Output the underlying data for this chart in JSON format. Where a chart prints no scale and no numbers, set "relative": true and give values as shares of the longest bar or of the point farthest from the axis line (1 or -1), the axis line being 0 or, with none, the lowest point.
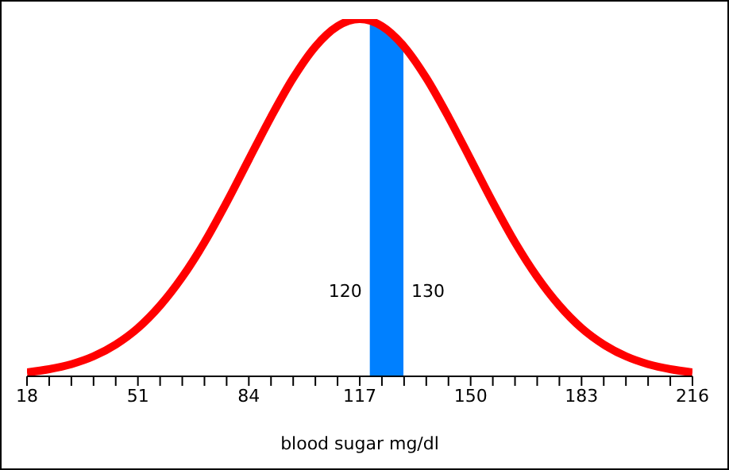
{
  "chart_data": {
    "type": "line",
    "relative": true,
    "xlabel": "blood sugar mg/dl",
    "xlim": [
      18,
      216
    ],
    "xticks": [
      18,
      {
        "value": 24.6,
        "label": null
      },
      {
        "value": 31.2,
        "label": null
      },
      {
        "value": 37.8,
        "label": null
      },
      {
        "value": 44.4,
        "label": null
      },
      51,
      {
        "value": 57.6,
        "label": null
      },
      {
        "value": 64.2,
        "label": null
      },
      {
        "value": 70.8,
        "label": null
      },
      {
        "value": 77.4,
        "label": null
      },
      84,
      {
        "value": 90.6,
        "label": null
      },
      {
        "value": 97.2,
        "label": null
      },
      {
        "value": 103.8,
        "label": null
      },
      {
        "value": 110.4,
        "label": null
      },
      117,
      {
        "value": 123.6,
        "label": null
      },
      {
        "value": 130.2,
        "label": null
      },
      {
        "value": 136.8,
        "label": null
      },
      {
        "value": 143.4,
        "label": null
      },
      150,
      {
        "value": 156.6,
        "label": null
      },
      {
        "value": 163.2,
        "label": null
      },
      {
        "value": 169.8,
        "label": null
      },
      {
        "value": 176.4,
        "label": null
      },
      183,
      {
        "value": 189.6,
        "label": null
      },
      {
        "value": 196.2,
        "label": null
      },
      {
        "value": 202.8,
        "label": null
      },
      {
        "value": 209.4,
        "label": null
      },
      216
    ],
    "series": [
      {
        "type": "area",
        "color": "#0080ff",
        "x": [
          120,
          125,
          130
        ],
        "values": [
          0.996,
          0.971,
          0.925
        ]
      },
      {
        "color": "#ff0000",
        "x": [
          18,
          24.6,
          31.2,
          37.8,
          44.4,
          51,
          57.6,
          64.2,
          70.8,
          77.4,
          84,
          90.6,
          97.2,
          103.8,
          110.4,
          117,
          123.6,
          130.2,
          136.8,
          143.4,
          150,
          156.6,
          163.2,
          169.8,
          176.4,
          183,
          189.6,
          196.2,
          202.8,
          209.4,
          216
        ],
        "values": [
          0.011,
          0.02,
          0.034,
          0.056,
          0.089,
          0.135,
          0.198,
          0.278,
          0.375,
          0.487,
          0.607,
          0.726,
          0.835,
          0.923,
          0.98,
          1,
          0.98,
          0.923,
          0.835,
          0.726,
          0.607,
          0.487,
          0.375,
          0.278,
          0.198,
          0.135,
          0.089,
          0.056,
          0.034,
          0.02,
          0.011
        ]
      }
    ],
    "annotations": [
      {
        "text": "120",
        "x": 120,
        "y": 0.24
      },
      {
        "text": "130",
        "x": 130,
        "y": 0.24
      }
    ]
  }
}
